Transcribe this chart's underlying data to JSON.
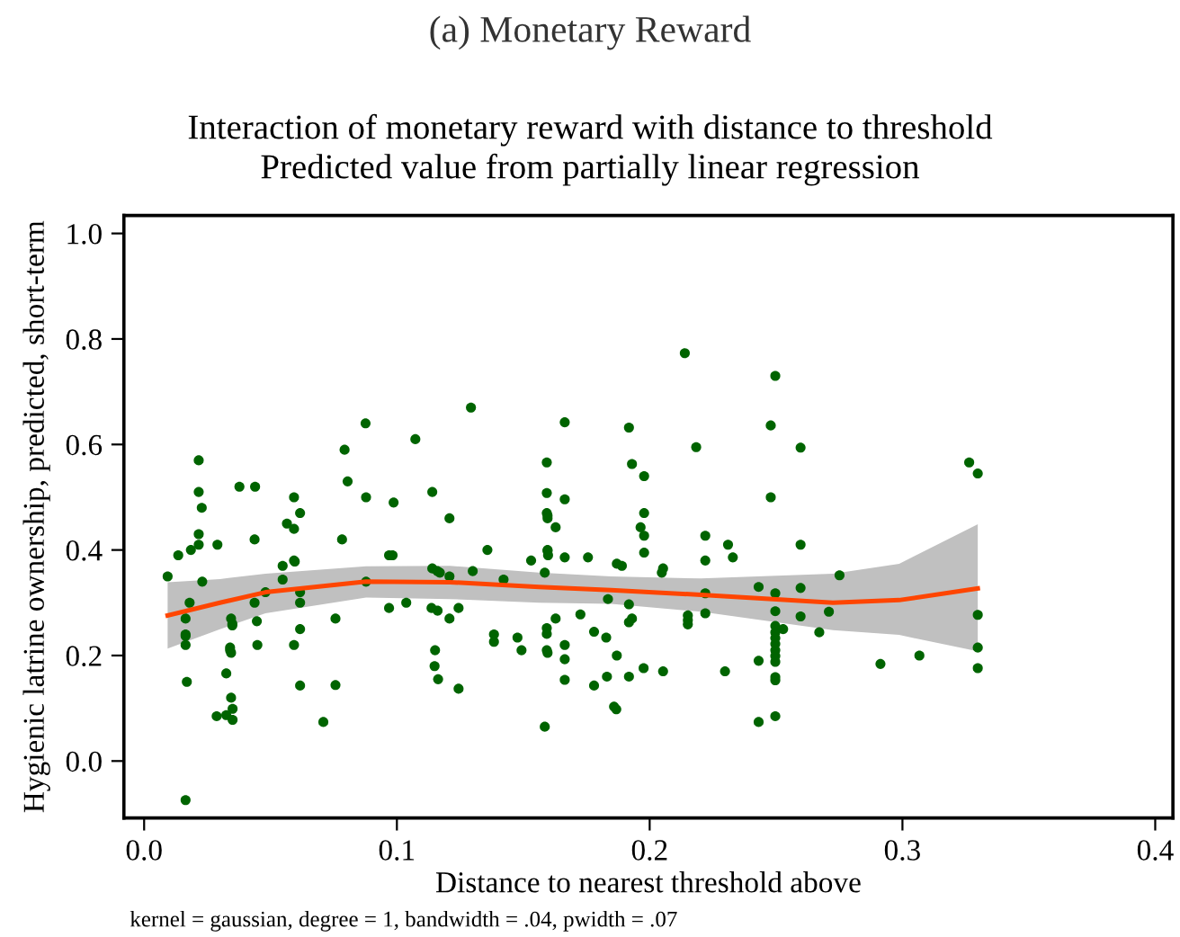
{
  "chart_data": {
    "type": "scatter",
    "title": "(a) Monetary Reward",
    "subtitle": "Interaction of monetary reward with distance to threshold\nPredicted value from partially linear regression",
    "xlabel": "Distance to nearest threshold above",
    "ylabel": "Hygienic latrine ownership, predicted, short-term",
    "annotations": [
      "kernel = gaussian, degree = 1, bandwidth = .04, pwidth = .07"
    ],
    "xlim": [
      -0.008,
      0.407
    ],
    "ylim": [
      -0.108,
      1.034
    ],
    "xticks": [
      {
        "value": 0,
        "label": "0.0"
      },
      {
        "value": 0.1,
        "label": "0.1"
      },
      {
        "value": 0.2,
        "label": "0.2"
      },
      {
        "value": 0.3,
        "label": "0.3"
      },
      {
        "value": 0.4,
        "label": "0.4"
      }
    ],
    "yticks": [
      {
        "value": 0,
        "label": "0.0"
      },
      {
        "value": 0.2,
        "label": "0.2"
      },
      {
        "value": 0.4,
        "label": "0.4"
      },
      {
        "value": 0.6,
        "label": "0.6"
      },
      {
        "value": 0.8,
        "label": "0.8"
      },
      {
        "value": 1.0,
        "label": "1.0"
      }
    ],
    "grid": false,
    "legend": false,
    "series": [
      {
        "marker": "circle",
        "color": "#006400",
        "x": [
          0.0093,
          0.0135,
          0.0185,
          0.0216,
          0.0216,
          0.0228,
          0.0216,
          0.0216,
          0.029,
          0.023,
          0.018,
          0.0164,
          0.0164,
          0.0164,
          0.0164,
          0.0169,
          0.0164,
          0.0344,
          0.0349,
          0.0349,
          0.034,
          0.034,
          0.0344,
          0.0325,
          0.0344,
          0.035,
          0.0287,
          0.0325,
          0.035,
          0.0377,
          0.0439,
          0.0437,
          0.048,
          0.0437,
          0.0446,
          0.0448,
          0.0548,
          0.0548,
          0.0565,
          0.0593,
          0.0617,
          0.0593,
          0.0593,
          0.0596,
          0.0617,
          0.0617,
          0.0617,
          0.0593,
          0.0617,
          0.0709,
          0.0757,
          0.0757,
          0.0783,
          0.0793,
          0.0805,
          0.0876,
          0.0878,
          0.0878,
          0.0969,
          0.0983,
          0.0969,
          0.0987,
          0.1037,
          0.1073,
          0.114,
          0.1208,
          0.114,
          0.116,
          0.117,
          0.1208,
          0.1137,
          0.1161,
          0.1208,
          0.1244,
          0.1151,
          0.1149,
          0.1163,
          0.1244,
          0.1293,
          0.1358,
          0.13,
          0.1422,
          0.1384,
          0.1384,
          0.1477,
          0.1493,
          0.1531,
          0.1585,
          0.1593,
          0.1593,
          0.1593,
          0.1596,
          0.1596,
          0.1628,
          0.1596,
          0.1596,
          0.1598,
          0.1664,
          0.1664,
          0.1756,
          0.1664,
          0.1628,
          0.1593,
          0.1593,
          0.1593,
          0.1596,
          0.1664,
          0.1664,
          0.1664,
          0.1585,
          0.1726,
          0.178,
          0.1828,
          0.178,
          0.1831,
          0.1859,
          0.1868,
          0.187,
          0.1835,
          0.187,
          0.189,
          0.1918,
          0.193,
          0.1978,
          0.1978,
          0.1964,
          0.1978,
          0.1978,
          0.1918,
          0.1918,
          0.193,
          0.1918,
          0.1976,
          0.2053,
          0.2048,
          0.2053,
          0.2139,
          0.2184,
          0.222,
          0.222,
          0.222,
          0.222,
          0.2151,
          0.2151,
          0.2151,
          0.231,
          0.2329,
          0.2298,
          0.2431,
          0.2431,
          0.2431,
          0.2479,
          0.2497,
          0.2479,
          0.2497,
          0.2497,
          0.2497,
          0.2497,
          0.2497,
          0.2497,
          0.2497,
          0.2497,
          0.2497,
          0.2497,
          0.2497,
          0.2497,
          0.2528,
          0.2597,
          0.2597,
          0.2597,
          0.2597,
          0.2671,
          0.2709,
          0.2751,
          0.2913,
          0.3067,
          0.3264,
          0.3298,
          0.3298,
          0.3298,
          0.3298
        ],
        "values": [
          0.35,
          0.39,
          0.4,
          0.41,
          0.43,
          0.48,
          0.51,
          0.57,
          0.41,
          0.34,
          0.3,
          0.27,
          0.24,
          0.237,
          0.22,
          0.15,
          -0.074,
          0.27,
          0.26,
          0.257,
          0.215,
          0.21,
          0.205,
          0.166,
          0.12,
          0.099,
          0.085,
          0.087,
          0.078,
          0.52,
          0.52,
          0.42,
          0.32,
          0.3,
          0.265,
          0.22,
          0.37,
          0.344,
          0.45,
          0.44,
          0.47,
          0.5,
          0.38,
          0.378,
          0.32,
          0.3,
          0.25,
          0.22,
          0.143,
          0.074,
          0.27,
          0.144,
          0.42,
          0.59,
          0.53,
          0.64,
          0.5,
          0.34,
          0.39,
          0.39,
          0.29,
          0.49,
          0.3,
          0.61,
          0.51,
          0.46,
          0.365,
          0.36,
          0.357,
          0.35,
          0.29,
          0.285,
          0.27,
          0.29,
          0.21,
          0.18,
          0.155,
          0.137,
          0.67,
          0.4,
          0.36,
          0.344,
          0.24,
          0.226,
          0.234,
          0.21,
          0.38,
          0.357,
          0.566,
          0.508,
          0.47,
          0.465,
          0.46,
          0.443,
          0.4,
          0.398,
          0.39,
          0.642,
          0.496,
          0.386,
          0.386,
          0.27,
          0.252,
          0.241,
          0.21,
          0.205,
          0.22,
          0.193,
          0.154,
          0.065,
          0.278,
          0.245,
          0.234,
          0.143,
          0.16,
          0.103,
          0.098,
          0.2,
          0.307,
          0.374,
          0.37,
          0.632,
          0.563,
          0.54,
          0.47,
          0.443,
          0.427,
          0.395,
          0.297,
          0.263,
          0.27,
          0.16,
          0.176,
          0.365,
          0.357,
          0.17,
          0.773,
          0.595,
          0.427,
          0.38,
          0.318,
          0.28,
          0.276,
          0.267,
          0.259,
          0.41,
          0.386,
          0.17,
          0.33,
          0.19,
          0.074,
          0.636,
          0.73,
          0.5,
          0.318,
          0.284,
          0.256,
          0.244,
          0.233,
          0.222,
          0.21,
          0.199,
          0.188,
          0.159,
          0.153,
          0.085,
          0.25,
          0.594,
          0.41,
          0.328,
          0.274,
          0.244,
          0.283,
          0.352,
          0.184,
          0.2,
          0.566,
          0.545,
          0.277,
          0.215,
          0.176
        ]
      },
      {
        "type": "line",
        "marker": "none",
        "line_style": "solid",
        "color": "#ff4500",
        "x": [
          0.0093,
          0.03,
          0.048,
          0.0878,
          0.121,
          0.1562,
          0.1847,
          0.2203,
          0.2725,
          0.2987,
          0.3298
        ],
        "values": [
          0.276,
          0.3,
          0.32,
          0.34,
          0.339,
          0.33,
          0.324,
          0.315,
          0.3,
          0.305,
          0.327
        ],
        "lower": [
          0.213,
          0.25,
          0.28,
          0.31,
          0.307,
          0.3,
          0.298,
          0.283,
          0.248,
          0.239,
          0.208
        ],
        "upper": [
          0.339,
          0.345,
          0.355,
          0.369,
          0.37,
          0.357,
          0.35,
          0.346,
          0.355,
          0.374,
          0.449
        ]
      }
    ]
  }
}
